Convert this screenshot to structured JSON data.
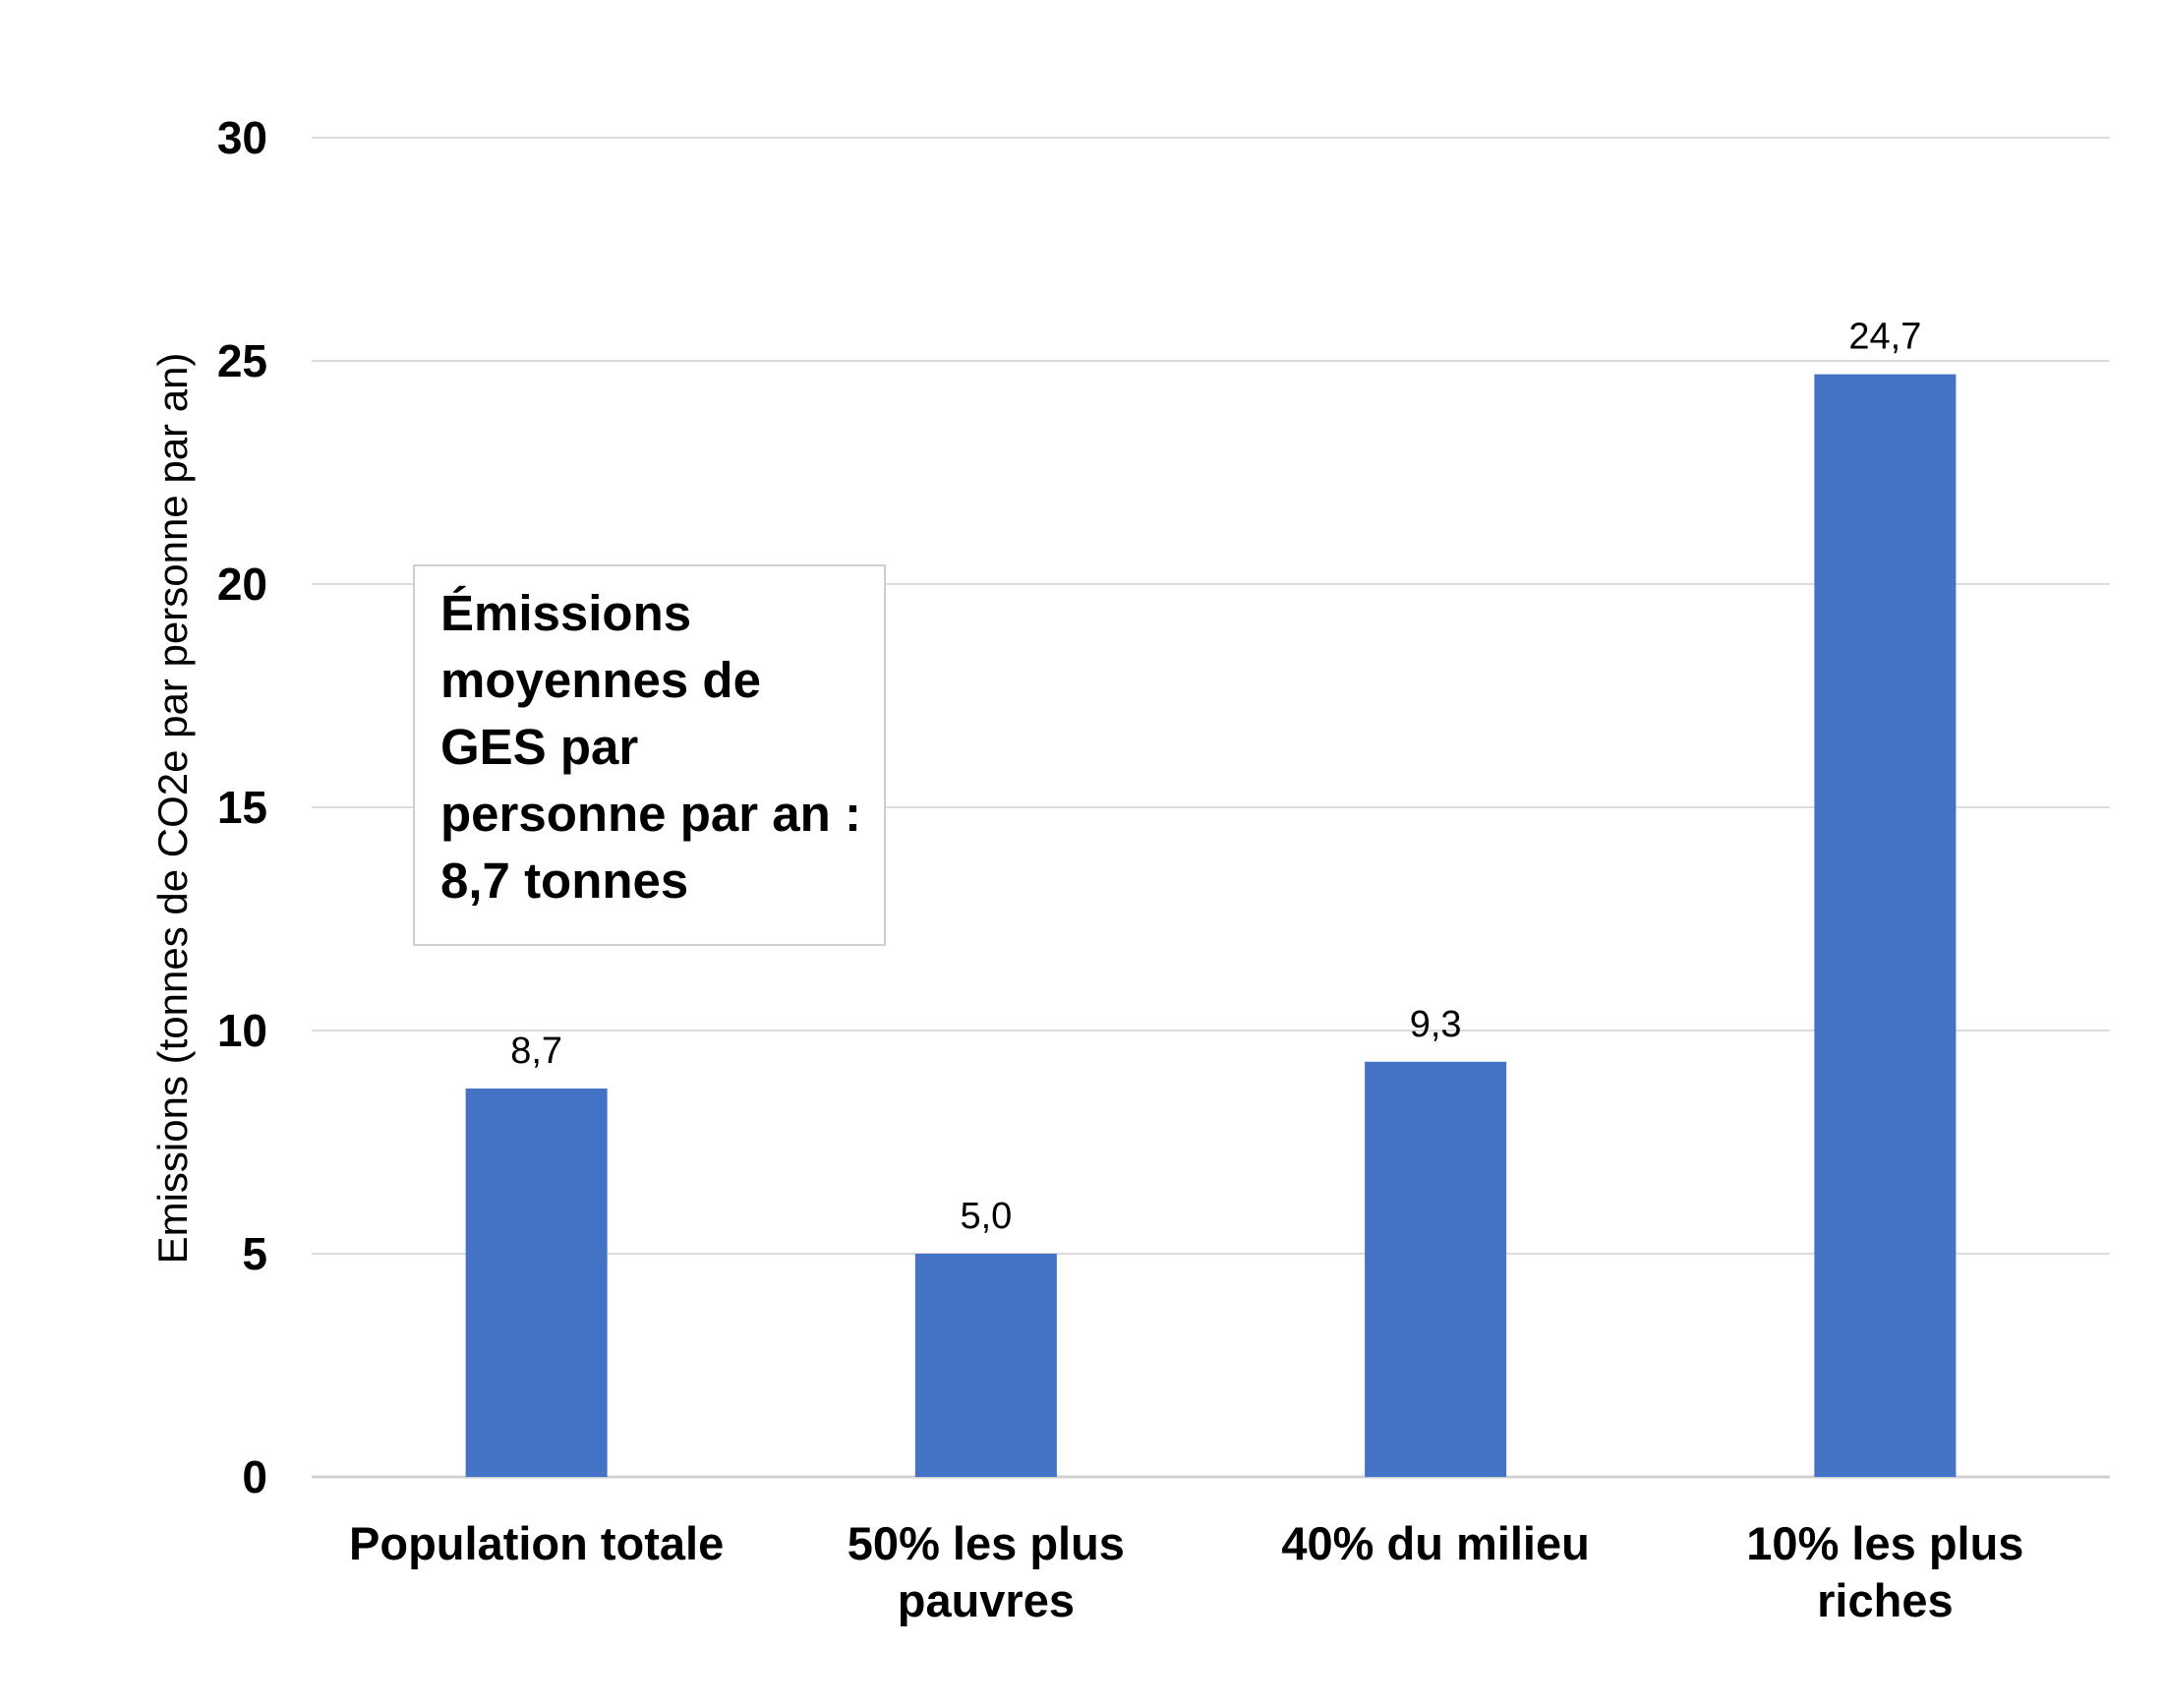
{
  "chart_data": {
    "type": "bar",
    "categories": [
      [
        "Population totale"
      ],
      [
        "50% les plus",
        "pauvres"
      ],
      [
        "40% du milieu"
      ],
      [
        "10% les plus",
        "riches"
      ]
    ],
    "values": [
      8.7,
      5.0,
      9.3,
      24.7
    ],
    "data_labels": [
      "8,7",
      "5,0",
      "9,3",
      "24,7"
    ],
    "title": "",
    "xlabel": "",
    "ylabel": "Emissions (tonnes de CO2e par personne par an)",
    "ylim": [
      0,
      30
    ],
    "yticks": [
      "0",
      "5",
      "10",
      "15",
      "20",
      "25",
      "30"
    ],
    "grid": true,
    "bar_color": "#4472C4",
    "annotation": "Émissions moyennes de GES par personne par an : 8,7 tonnes"
  }
}
